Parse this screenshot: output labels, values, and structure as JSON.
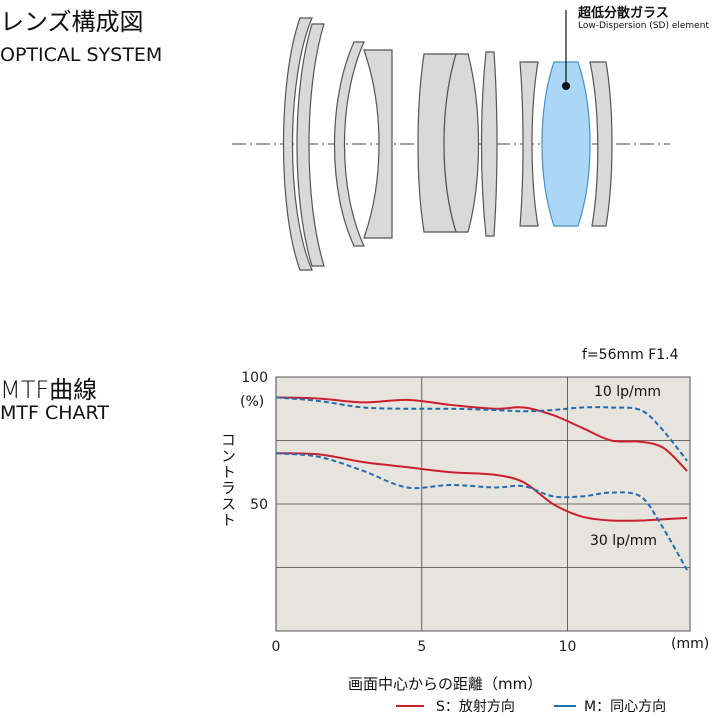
{
  "optical": {
    "title_jp": "レンズ構成図",
    "title_en": "OPTICAL SYSTEM",
    "sd_label_jp": "超低分散ガラス",
    "sd_label_en": "Low-Dispersion (SD) element",
    "colors": {
      "lens_fill": "#d9d9d9",
      "lens_stroke": "#555555",
      "sd_fill": "#a9d7f5",
      "sd_stroke": "#4a90c8"
    }
  },
  "mtf": {
    "title_jp": "MTF曲線",
    "title_en": "MTF CHART",
    "ylabel_jp": "コントラスト",
    "xlabel_jp": "画面中心からの距離（mm）",
    "x_unit": "(mm)",
    "y_unit": "(%)",
    "lens_spec": "f=56mm F1.4",
    "legend": {
      "s_label": "S：放射方向",
      "m_label": "M：同心方向"
    }
  },
  "chart_data": {
    "type": "line",
    "title": "f=56mm F1.4",
    "xlabel": "画面中心からの距離（mm）",
    "ylabel": "コントラスト",
    "xlim": [
      0,
      14.2
    ],
    "ylim": [
      0,
      100
    ],
    "x_ticks": [
      "0",
      "5",
      "10"
    ],
    "y_ticks": [
      "100",
      "50"
    ],
    "grid": true,
    "background": "#e7e4dd",
    "colors": {
      "S": "#cc1f2d",
      "M": "#1f6db5"
    },
    "annotations": [
      "10 lp/mm",
      "30 lp/mm"
    ],
    "series": [
      {
        "name": "10 lp/mm S",
        "style": "solid",
        "points": [
          [
            0,
            92
          ],
          [
            1.5,
            91.5
          ],
          [
            3,
            90
          ],
          [
            4.5,
            91
          ],
          [
            6,
            89
          ],
          [
            7.5,
            87.5
          ],
          [
            8.5,
            88
          ],
          [
            9.5,
            85
          ],
          [
            10.5,
            80
          ],
          [
            11.5,
            75
          ],
          [
            12.5,
            74.5
          ],
          [
            13.3,
            72
          ],
          [
            14.1,
            63
          ]
        ]
      },
      {
        "name": "10 lp/mm M",
        "style": "dashed",
        "points": [
          [
            0,
            92
          ],
          [
            1.5,
            90.5
          ],
          [
            3,
            88
          ],
          [
            4.5,
            87.5
          ],
          [
            6,
            87.5
          ],
          [
            7.5,
            87
          ],
          [
            8.5,
            86.5
          ],
          [
            9.5,
            87
          ],
          [
            10.5,
            88
          ],
          [
            11.5,
            88
          ],
          [
            12.5,
            87
          ],
          [
            13.2,
            80
          ],
          [
            14.1,
            67
          ]
        ]
      },
      {
        "name": "30 lp/mm S",
        "style": "solid",
        "points": [
          [
            0,
            70
          ],
          [
            1.5,
            69.5
          ],
          [
            3,
            66.5
          ],
          [
            4.5,
            64.5
          ],
          [
            6,
            62.5
          ],
          [
            7.5,
            61.5
          ],
          [
            8.5,
            58.5
          ],
          [
            9.5,
            50
          ],
          [
            10.5,
            45
          ],
          [
            11.5,
            43.5
          ],
          [
            12.5,
            43.5
          ],
          [
            13.3,
            44
          ],
          [
            14.1,
            44.5
          ]
        ]
      },
      {
        "name": "30 lp/mm M",
        "style": "dashed",
        "points": [
          [
            0,
            70
          ],
          [
            1.5,
            68.5
          ],
          [
            3,
            63
          ],
          [
            4.5,
            56.5
          ],
          [
            6,
            57.5
          ],
          [
            7.5,
            56.5
          ],
          [
            8.5,
            57
          ],
          [
            9.5,
            53
          ],
          [
            10.5,
            53
          ],
          [
            11.5,
            54.5
          ],
          [
            12.5,
            53
          ],
          [
            13.2,
            42
          ],
          [
            14.1,
            24
          ]
        ]
      }
    ]
  }
}
